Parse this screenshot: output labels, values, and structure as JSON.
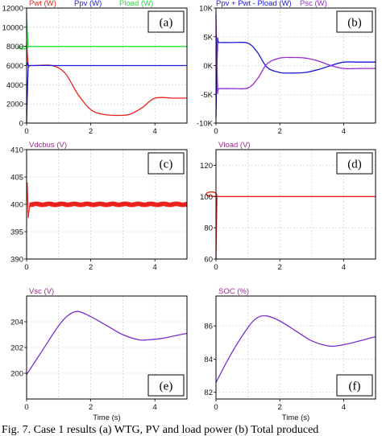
{
  "caption": "Fig. 7. Case 1 results (a) WTG, PV and load power (b) Total produced",
  "colors": {
    "red": "#e8221b",
    "blue": "#1a1ad8",
    "green": "#22e53a",
    "purple": "#9a29d6",
    "violet": "#7a2fd0",
    "title": "#a0288a"
  },
  "chart_data": [
    {
      "id": "a",
      "type": "line",
      "panel_label": "(a)",
      "xlim": [
        0,
        5
      ],
      "ylim": [
        0,
        12000
      ],
      "x_ticks": [
        "0",
        "2",
        "4"
      ],
      "y_ticks": [
        "0",
        "2000",
        "4000",
        "6000",
        "8000",
        "10000",
        "12000"
      ],
      "legend_placement": "top",
      "series": [
        {
          "name": "Pwt (W)",
          "color": "#e8221b",
          "x": [
            0,
            0.05,
            0.1,
            0.3,
            0.8,
            1.2,
            1.6,
            2.0,
            2.4,
            2.8,
            3.2,
            3.6,
            4.0,
            4.6,
            5.0
          ],
          "y": [
            8500,
            6000,
            6000,
            6000,
            6000,
            5200,
            3000,
            1400,
            900,
            800,
            900,
            1600,
            2600,
            2600,
            2600
          ]
        },
        {
          "name": "Ppv (W)",
          "color": "#1a1ad8",
          "x": [
            0,
            0.05,
            0.1,
            1,
            2,
            3,
            4,
            5
          ],
          "y": [
            0,
            5800,
            6000,
            6000,
            6000,
            6000,
            6000,
            6000
          ]
        },
        {
          "name": "Pload (W)",
          "color": "#22e53a",
          "x": [
            0,
            0.05,
            0.1,
            5
          ],
          "y": [
            11500,
            8000,
            8000,
            8000
          ]
        }
      ]
    },
    {
      "id": "b",
      "type": "line",
      "panel_label": "(b)",
      "xlim": [
        0,
        5
      ],
      "ylim": [
        -10000,
        10000
      ],
      "x_ticks": [
        "0",
        "2",
        "4"
      ],
      "y_ticks": [
        "-10K",
        "-5K",
        "0K",
        "5K",
        "10K"
      ],
      "legend_placement": "top",
      "series": [
        {
          "name": "Ppv + Pwt - Pload (W)",
          "color": "#1a1ad8",
          "x": [
            0,
            0.05,
            0.1,
            0.5,
            1.0,
            1.3,
            1.6,
            2.0,
            2.4,
            2.8,
            3.2,
            3.6,
            4.0,
            4.5,
            5.0
          ],
          "y": [
            -9000,
            3800,
            4000,
            4000,
            3900,
            2300,
            -300,
            -1200,
            -1300,
            -1200,
            -700,
            0,
            600,
            600,
            600
          ]
        },
        {
          "name": "Psc (W)",
          "color": "#9a29d6",
          "x": [
            0,
            0.05,
            0.1,
            0.5,
            1.0,
            1.3,
            1.6,
            2.0,
            2.4,
            2.8,
            3.2,
            3.6,
            4.0,
            4.5,
            5.0
          ],
          "y": [
            9000,
            -3800,
            -4000,
            -4000,
            -3900,
            -2300,
            300,
            1300,
            1400,
            1300,
            800,
            0,
            -500,
            -500,
            -500
          ]
        }
      ]
    },
    {
      "id": "c",
      "type": "line",
      "panel_label": "(c)",
      "xlim": [
        0,
        5
      ],
      "ylim": [
        390,
        410
      ],
      "x_ticks": [
        "0",
        "2",
        "4"
      ],
      "y_ticks": [
        "390",
        "395",
        "400",
        "405",
        "410"
      ],
      "legend_placement": "top",
      "series": [
        {
          "name": "Vdcbus (V)",
          "color": "#e8221b",
          "x": [
            0,
            0.02,
            0.05,
            0.1,
            5.0
          ],
          "y": [
            400,
            404,
            397.5,
            400,
            400
          ],
          "ripple": 0.5
        }
      ]
    },
    {
      "id": "d",
      "type": "line",
      "panel_label": "(d)",
      "xlim": [
        0,
        5
      ],
      "ylim": [
        60,
        130
      ],
      "x_ticks": [
        "0",
        "2",
        "4"
      ],
      "y_ticks": [
        "60",
        "80",
        "100",
        "120"
      ],
      "legend_placement": "top",
      "series": [
        {
          "name": "Vload (V)",
          "color": "#e8221b",
          "x": [
            0,
            0.03,
            0.06,
            5.0
          ],
          "y": [
            60,
            100,
            100,
            100
          ]
        }
      ]
    },
    {
      "id": "e",
      "type": "line",
      "panel_label": "(e)",
      "xlim": [
        0,
        5
      ],
      "ylim": [
        198,
        206
      ],
      "x_ticks": [
        "0",
        "2",
        "4"
      ],
      "y_ticks": [
        "200",
        "202",
        "204"
      ],
      "xlabel": "Time (s)",
      "legend_placement": "top",
      "series": [
        {
          "name": "Vsc (V)",
          "color": "#7a2fd0",
          "x": [
            0,
            0.5,
            1.0,
            1.3,
            1.6,
            2.0,
            2.5,
            3.0,
            3.5,
            3.8,
            4.2,
            4.6,
            5.0
          ],
          "y": [
            199.9,
            201.8,
            203.7,
            204.5,
            204.8,
            204.4,
            203.7,
            203.0,
            202.6,
            202.6,
            202.7,
            202.9,
            203.1
          ]
        }
      ]
    },
    {
      "id": "f",
      "type": "line",
      "panel_label": "(f)",
      "xlim": [
        0,
        5
      ],
      "ylim": [
        81.6,
        87.8
      ],
      "x_ticks": [
        "0",
        "2",
        "4"
      ],
      "y_ticks": [
        "82",
        "84",
        "86"
      ],
      "xlabel": "Time (s)",
      "legend_placement": "top",
      "series": [
        {
          "name": "SOC (%)",
          "color": "#7a2fd0",
          "x": [
            0,
            0.5,
            1.0,
            1.3,
            1.6,
            2.0,
            2.5,
            3.0,
            3.5,
            3.8,
            4.2,
            4.6,
            5.0
          ],
          "y": [
            82.6,
            84.4,
            85.9,
            86.5,
            86.6,
            86.3,
            85.7,
            85.1,
            84.8,
            84.8,
            84.95,
            85.15,
            85.35
          ]
        }
      ]
    }
  ]
}
